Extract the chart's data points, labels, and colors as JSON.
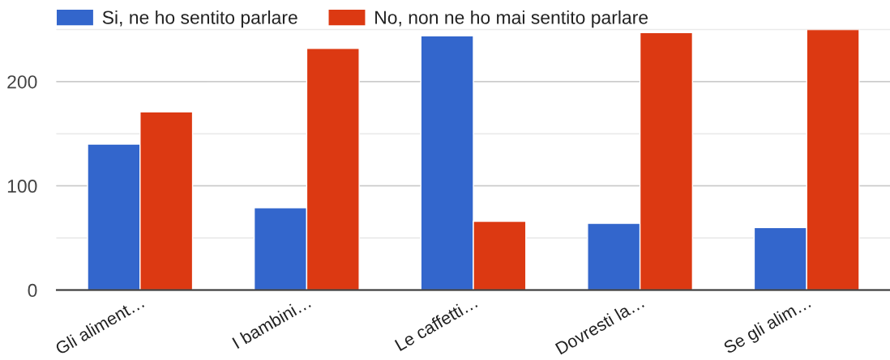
{
  "chart_data": {
    "type": "bar",
    "categories": [
      "Gli aliment…",
      "I bambini…",
      "Le caffetti…",
      "Dovresti la…",
      "Se gli alim…"
    ],
    "series": [
      {
        "name": "Si, ne ho sentito parlare",
        "color": "#3366cc",
        "values": [
          140,
          79,
          244,
          64,
          60
        ]
      },
      {
        "name": "No, non ne ho mai sentito parlare",
        "color": "#dc3912",
        "values": [
          171,
          232,
          66,
          247,
          250
        ]
      }
    ],
    "ylim": [
      0,
      250
    ],
    "yticks": [
      0,
      {
        "value": 50,
        "label": null
      },
      100,
      {
        "value": 150,
        "label": null
      },
      200,
      {
        "value": 250,
        "label": null
      }
    ],
    "grid": "y",
    "legend": "top left"
  }
}
